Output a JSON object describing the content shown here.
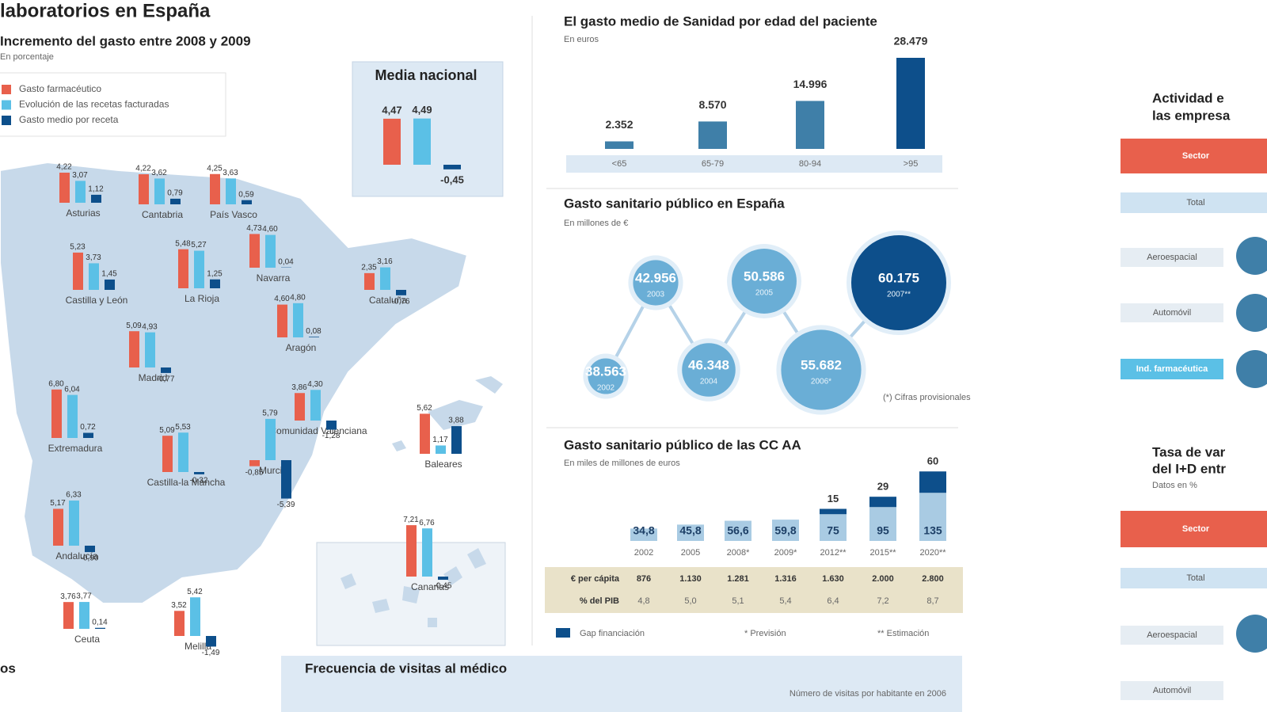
{
  "chart_data": [
    {
      "type": "mapbar",
      "title": "laboratorios en España",
      "subtitle": "Incremento del gasto entre 2008 y 2009",
      "note": "En porcentaje",
      "categories": [
        "Asturias",
        "Cantabria",
        "País Vasco",
        "Castilla y León",
        "La Rioja",
        "Navarra",
        "Cataluña",
        "Aragón",
        "Madrid",
        "Extremadura",
        "Castilla-la Mancha",
        "Comunidad Valenciana",
        "Baleares",
        "Murcia",
        "Andalucía",
        "Canarias",
        "Ceuta",
        "Melilla"
      ],
      "series": [
        {
          "name": "Gasto farmacéutico",
          "color": "#e8604c",
          "values": [
            4.22,
            4.22,
            4.25,
            5.23,
            5.48,
            4.73,
            2.35,
            4.6,
            5.09,
            6.8,
            5.09,
            3.86,
            5.62,
            -0.85,
            5.17,
            7.21,
            3.76,
            3.52
          ],
          "value_labels": [
            "4,22",
            "4,22",
            "4,25",
            "5,23",
            "5,48",
            "4,73",
            "2,35",
            "4,60",
            "5,09",
            "6,80",
            "5,09",
            "3,86",
            "5,62",
            "-0,85",
            "5,17",
            "7,21",
            "3,76",
            "3,52"
          ]
        },
        {
          "name": "Evolución de las recetas facturadas",
          "color": "#5bc0e6",
          "values": [
            3.07,
            3.62,
            3.63,
            3.73,
            5.27,
            4.6,
            3.16,
            4.8,
            4.93,
            6.04,
            5.53,
            4.3,
            1.17,
            5.79,
            6.33,
            6.76,
            3.77,
            5.42
          ],
          "value_labels": [
            "3,07",
            "3,62",
            "3,63",
            "3,73",
            "5,27",
            "4,60",
            "3,16",
            "4,80",
            "4,93",
            "6,04",
            "5,53",
            "4,30",
            "1,17",
            "5,79",
            "6,33",
            "6,76",
            "3,77",
            "5,42"
          ]
        },
        {
          "name": "Gasto medio por receta",
          "color": "#0d4f8b",
          "values": [
            1.12,
            0.79,
            0.59,
            1.45,
            1.25,
            0.04,
            -0.76,
            0.08,
            -0.77,
            0.72,
            -0.32,
            -1.28,
            3.88,
            -5.39,
            -0.9,
            -0.45,
            0.14,
            -1.49
          ],
          "value_labels": [
            "1,12",
            "0,79",
            "0,59",
            "1,45",
            "1,25",
            "0,04",
            "-0,76",
            "0,08",
            "-0,77",
            "0,72",
            "-0,32",
            "-1,28",
            "3,88",
            "-5,39",
            "-0,90",
            "-0,45",
            "0,14",
            "-1,49"
          ]
        }
      ]
    },
    {
      "type": "bar",
      "title": "Media nacional",
      "categories": [
        null
      ],
      "series": [
        {
          "color": "#e8604c",
          "values": [
            4.47
          ],
          "value_labels": [
            "4,47"
          ]
        },
        {
          "color": "#5bc0e6",
          "values": [
            4.49
          ],
          "value_labels": [
            "4,49"
          ]
        },
        {
          "color": "#0d4f8b",
          "values": [
            -0.45
          ],
          "value_labels": [
            "-0,45"
          ]
        }
      ]
    },
    {
      "type": "bar",
      "title": "El gasto medio de Sanidad por edad del paciente",
      "subtitle": "En euros",
      "categories": [
        "<65",
        "65-79",
        "80-94",
        ">95"
      ],
      "values": [
        2352,
        8570,
        14996,
        28479
      ],
      "value_labels": [
        "2.352",
        "8.570",
        "14.996",
        "28.479"
      ],
      "colors": [
        "#3f7fa8",
        "#3f7fa8",
        "#3f7fa8",
        "#0d4f8b"
      ]
    },
    {
      "type": "bubble",
      "title": "Gasto sanitario público en España",
      "subtitle": "En millones de €",
      "categories": [
        "2002",
        "2003",
        "2004",
        "2005",
        "2006*",
        "2007**"
      ],
      "values": [
        38563,
        42956,
        46348,
        50586,
        55682,
        60175
      ],
      "value_labels": [
        "38.563",
        "42.956",
        "46.348",
        "50.586",
        "55.682",
        "60.175"
      ],
      "colors": [
        "#6aaed6",
        "#6aaed6",
        "#6aaed6",
        "#6aaed6",
        "#6aaed6",
        "#0d4f8b"
      ],
      "note": "(*) Cifras provisionales"
    },
    {
      "type": "stacked",
      "title": "Gasto sanitario público de las CC AA",
      "subtitle": "En miles de millones de euros",
      "categories": [
        "2002",
        "2005",
        "2008*",
        "2009*",
        "2012**",
        "2015**",
        "2020**"
      ],
      "series": [
        {
          "color": "#a9cbe3",
          "values": [
            34.8,
            45.8,
            56.6,
            59.8,
            75,
            95,
            135
          ],
          "value_labels": [
            "34,8",
            "45,8",
            "56,6",
            "59,8",
            "75",
            "95",
            "135"
          ]
        },
        {
          "name": "Gap financiación",
          "color": "#0d4f8b",
          "values": [
            null,
            null,
            null,
            null,
            15,
            29,
            60
          ]
        }
      ],
      "table": {
        "rows": [
          {
            "label": "€ per cápita",
            "values": [
              "876",
              "1.130",
              "1.281",
              "1.316",
              "1.630",
              "2.000",
              "2.800"
            ]
          },
          {
            "label": "% del PIB",
            "values": [
              "4,8",
              "5,0",
              "5,1",
              "5,4",
              "6,4",
              "7,2",
              "8,7"
            ]
          }
        ]
      },
      "notes": [
        "* Previsión",
        "** Estimación"
      ]
    }
  ],
  "right_panel": {
    "title1": "Actividad e",
    "title1b": "las empresa",
    "rows1": [
      "Sector",
      "Total",
      "Aeroespacial",
      "Automóvil",
      "Ind. farmacéutica"
    ],
    "title2": "Tasa de var",
    "title2b": "del I+D entr",
    "note2": "Datos en %",
    "rows2": [
      "Sector",
      "Total",
      "Aeroespacial",
      "Automóvil"
    ]
  },
  "bottom": {
    "title": "Frecuencia de visitas al médico",
    "subtitle": "Número de visitas por habitante en 2006",
    "left_fragment": "os"
  }
}
